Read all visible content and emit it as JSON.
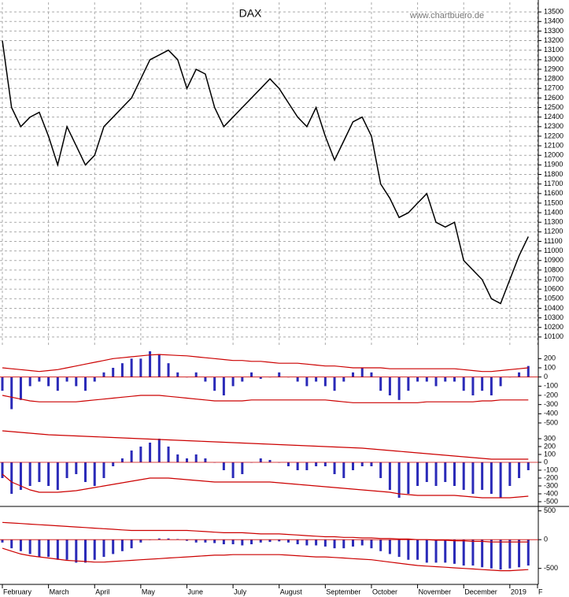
{
  "chart_data": [
    {
      "type": "line",
      "title": "DAX",
      "subtitle": "www.chartbuero.de",
      "color": "#000000",
      "categories": [
        "February",
        null,
        null,
        null,
        null,
        "March",
        null,
        null,
        null,
        null,
        "April",
        null,
        null,
        null,
        null,
        "May",
        null,
        null,
        null,
        null,
        "June",
        null,
        null,
        null,
        null,
        "July",
        null,
        null,
        null,
        null,
        "August",
        null,
        null,
        null,
        null,
        "September",
        null,
        null,
        null,
        null,
        "October",
        null,
        null,
        null,
        null,
        "November",
        null,
        null,
        null,
        null,
        "December",
        null,
        null,
        null,
        null,
        "2019",
        null,
        null,
        "F"
      ],
      "values": [
        13200,
        12500,
        12300,
        12400,
        12450,
        12200,
        11900,
        12300,
        12100,
        11900,
        12000,
        12300,
        12400,
        12500,
        12600,
        12800,
        13000,
        13050,
        13100,
        13000,
        12700,
        12900,
        12850,
        12500,
        12300,
        12400,
        12500,
        12600,
        12700,
        12800,
        12700,
        12550,
        12400,
        12300,
        12500,
        12200,
        11950,
        12150,
        12350,
        12400,
        12200,
        11700,
        11550,
        11350,
        11400,
        11500,
        11600,
        11300,
        11250,
        11300,
        10900,
        10800,
        10700,
        10500,
        10450,
        10700,
        10950,
        11150,
        null
      ],
      "ylim": [
        10000,
        13600
      ],
      "yticks": [
        10100,
        10200,
        10300,
        10400,
        10500,
        10600,
        10700,
        10800,
        10900,
        11000,
        11100,
        11200,
        11300,
        11400,
        11500,
        11600,
        11700,
        11800,
        11900,
        12000,
        12100,
        12200,
        12300,
        12400,
        12500,
        12600,
        12700,
        12800,
        12900,
        13000,
        13100,
        13200,
        13300,
        13400,
        13500
      ],
      "grid": true
    },
    {
      "type": "bar",
      "color": "#2a2ab8",
      "band_color": "#cc0000",
      "values": [
        -150,
        -350,
        -250,
        -100,
        -50,
        -100,
        -150,
        -50,
        -100,
        -150,
        -50,
        50,
        100,
        150,
        200,
        200,
        280,
        250,
        150,
        50,
        0,
        50,
        -50,
        -150,
        -200,
        -100,
        -50,
        50,
        -20,
        0,
        50,
        0,
        -50,
        -100,
        -50,
        -100,
        -150,
        -50,
        50,
        100,
        50,
        -150,
        -200,
        -250,
        -150,
        -50,
        -50,
        -100,
        -50,
        -50,
        -150,
        -200,
        -150,
        -200,
        -100,
        0,
        50,
        120,
        null
      ],
      "upper": [
        100,
        90,
        80,
        70,
        60,
        70,
        80,
        100,
        120,
        140,
        160,
        180,
        200,
        210,
        220,
        230,
        240,
        245,
        240,
        235,
        230,
        220,
        210,
        200,
        190,
        180,
        180,
        170,
        170,
        160,
        150,
        150,
        150,
        140,
        130,
        120,
        120,
        110,
        100,
        100,
        100,
        100,
        90,
        90,
        90,
        90,
        90,
        90,
        90,
        90,
        80,
        70,
        60,
        60,
        70,
        80,
        90,
        100,
        null
      ],
      "lower": [
        -200,
        -220,
        -240,
        -260,
        -270,
        -270,
        -270,
        -270,
        -270,
        -260,
        -250,
        -240,
        -230,
        -220,
        -210,
        -200,
        -200,
        -200,
        -210,
        -220,
        -230,
        -240,
        -250,
        -260,
        -260,
        -260,
        -260,
        -250,
        -250,
        -250,
        -250,
        -250,
        -250,
        -250,
        -250,
        -250,
        -260,
        -270,
        -280,
        -280,
        -280,
        -280,
        -280,
        -280,
        -280,
        -280,
        -270,
        -270,
        -270,
        -270,
        -270,
        -270,
        -260,
        -260,
        -250,
        -250,
        -250,
        -250,
        null
      ],
      "ylim": [
        -560,
        280
      ],
      "yticks": [
        200,
        100,
        0,
        -100,
        -200,
        -300,
        -400,
        -500
      ]
    },
    {
      "type": "bar",
      "color": "#2a2ab8",
      "band_color": "#cc0000",
      "values": [
        -200,
        -400,
        -350,
        -300,
        -250,
        -300,
        -350,
        -200,
        -150,
        -250,
        -300,
        -200,
        -50,
        50,
        150,
        200,
        250,
        300,
        200,
        100,
        50,
        100,
        50,
        0,
        -100,
        -200,
        -150,
        0,
        50,
        30,
        0,
        -50,
        -100,
        -100,
        -50,
        -50,
        -150,
        -200,
        -100,
        -50,
        -50,
        -200,
        -350,
        -450,
        -400,
        -300,
        -250,
        -300,
        -250,
        -300,
        -350,
        -400,
        -350,
        -400,
        -450,
        -300,
        -200,
        -100,
        null
      ],
      "upper": [
        400,
        390,
        380,
        370,
        360,
        350,
        345,
        340,
        335,
        330,
        325,
        320,
        315,
        310,
        305,
        300,
        295,
        290,
        285,
        280,
        275,
        270,
        265,
        260,
        255,
        250,
        245,
        240,
        235,
        230,
        225,
        220,
        215,
        210,
        205,
        200,
        195,
        190,
        185,
        180,
        170,
        160,
        150,
        140,
        130,
        120,
        110,
        100,
        90,
        80,
        70,
        60,
        50,
        40,
        40,
        40,
        40,
        40,
        null
      ],
      "lower": [
        -150,
        -250,
        -300,
        -350,
        -380,
        -380,
        -380,
        -370,
        -360,
        -340,
        -320,
        -300,
        -280,
        -260,
        -240,
        -220,
        -200,
        -200,
        -200,
        -210,
        -220,
        -230,
        -240,
        -250,
        -250,
        -250,
        -250,
        -250,
        -250,
        -250,
        -260,
        -270,
        -280,
        -290,
        -300,
        -310,
        -320,
        -330,
        -340,
        -350,
        -360,
        -370,
        -380,
        -400,
        -410,
        -420,
        -420,
        -420,
        -420,
        -420,
        -430,
        -440,
        -450,
        -450,
        -450,
        -450,
        -440,
        -430,
        null
      ],
      "ylim": [
        -560,
        400
      ],
      "yticks": [
        300,
        200,
        100,
        0,
        -100,
        -200,
        -300,
        -400,
        -500
      ]
    },
    {
      "type": "bar",
      "color": "#2a2ab8",
      "band_color": "#cc0000",
      "values": [
        -50,
        -150,
        -200,
        -250,
        -300,
        -300,
        -350,
        -350,
        -400,
        -400,
        -350,
        -300,
        -250,
        -200,
        -150,
        -50,
        0,
        20,
        20,
        10,
        -20,
        -50,
        -50,
        -60,
        -80,
        -80,
        -100,
        -80,
        -50,
        -40,
        -30,
        -50,
        -80,
        -100,
        -100,
        -120,
        -150,
        -150,
        -120,
        -100,
        -150,
        -200,
        -250,
        -300,
        -350,
        -350,
        -400,
        -400,
        -400,
        -420,
        -450,
        -450,
        -480,
        -500,
        -520,
        -500,
        -480,
        -450,
        null
      ],
      "upper": [
        300,
        290,
        280,
        270,
        260,
        250,
        240,
        230,
        220,
        210,
        200,
        190,
        180,
        170,
        160,
        160,
        160,
        160,
        160,
        160,
        160,
        150,
        140,
        130,
        120,
        120,
        120,
        110,
        100,
        100,
        100,
        90,
        80,
        70,
        60,
        50,
        50,
        40,
        40,
        30,
        30,
        20,
        20,
        10,
        10,
        0,
        0,
        -10,
        -10,
        -20,
        -20,
        -30,
        -30,
        -40,
        -40,
        -40,
        -40,
        -40,
        null
      ],
      "lower": [
        -150,
        -200,
        -250,
        -280,
        -300,
        -320,
        -340,
        -360,
        -370,
        -380,
        -390,
        -390,
        -380,
        -370,
        -360,
        -350,
        -340,
        -330,
        -320,
        -310,
        -300,
        -290,
        -280,
        -270,
        -270,
        -260,
        -260,
        -260,
        -260,
        -260,
        -260,
        -270,
        -280,
        -290,
        -300,
        -300,
        -310,
        -320,
        -330,
        -340,
        -350,
        -370,
        -390,
        -410,
        -430,
        -450,
        -460,
        -470,
        -480,
        -490,
        -500,
        -510,
        -520,
        -530,
        -540,
        -540,
        -530,
        -520,
        null
      ],
      "ylim": [
        -600,
        550
      ],
      "yticks": [
        500,
        0,
        -500
      ]
    }
  ]
}
